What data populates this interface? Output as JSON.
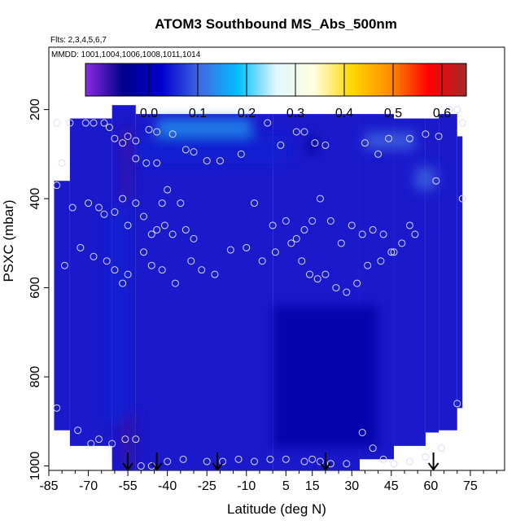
{
  "chart_data": {
    "type": "heatmap",
    "title": "ATOM3 Southbound MS_Abs_500nm",
    "flights_label": "Flts: 2,3,4,5,6,7",
    "dates_label": "MMDD: 1001,1004,1006,1008,1011,1014",
    "xlabel": "Latitude (deg N)",
    "ylabel": "PSXC (mbar)",
    "xlim": [
      -85,
      88
    ],
    "ylim": [
      1010,
      60
    ],
    "x_ticks": [
      -85,
      -70,
      -55,
      -40,
      -25,
      -10,
      5,
      15,
      30,
      45,
      60,
      75
    ],
    "x_tick_labels": [
      "-85",
      "-70",
      "-55",
      "-40",
      "-25",
      "-10",
      "5",
      "15",
      "30",
      "45",
      "60",
      "75"
    ],
    "y_ticks": [
      200,
      400,
      600,
      800,
      1000
    ],
    "y_tick_labels": [
      "200",
      "400",
      "600",
      "800",
      "1000"
    ],
    "colorbar": {
      "min": -0.13,
      "max": 0.65,
      "ticks": [
        0.0,
        0.1,
        0.2,
        0.3,
        0.4,
        0.5,
        0.6
      ],
      "tick_labels": [
        "0.0",
        "0.1",
        "0.2",
        "0.3",
        "0.4",
        "0.5",
        "0.6"
      ],
      "colors": [
        "#8a2be2",
        "#00008b",
        "#0000cd",
        "#4169e1",
        "#00bfff",
        "#e0f6ff",
        "#ffffe0",
        "#ffd700",
        "#ff8c00",
        "#ff0000",
        "#a52a2a"
      ]
    },
    "field": {
      "background": 0.0,
      "background_color": "#1a1acc",
      "coverage": [
        {
          "lat": [
            -83,
            -77
          ],
          "p": [
            360,
            920
          ]
        },
        {
          "lat": [
            -77,
            -61
          ],
          "p": [
            220,
            955
          ]
        },
        {
          "lat": [
            -61,
            -52
          ],
          "p": [
            190,
            1010
          ]
        },
        {
          "lat": [
            -52,
            0
          ],
          "p": [
            210,
            1010
          ]
        },
        {
          "lat": [
            0,
            33
          ],
          "p": [
            210,
            1010
          ]
        },
        {
          "lat": [
            33,
            46
          ],
          "p": [
            210,
            985
          ]
        },
        {
          "lat": [
            46,
            58
          ],
          "p": [
            220,
            955
          ]
        },
        {
          "lat": [
            58,
            63
          ],
          "p": [
            220,
            925
          ]
        },
        {
          "lat": [
            63,
            70
          ],
          "p": [
            210,
            920
          ]
        },
        {
          "lat": [
            70,
            72
          ],
          "p": [
            260,
            870
          ]
        }
      ],
      "features": [
        {
          "lat": [
            -44,
            -8
          ],
          "p": [
            220,
            260
          ],
          "value": 0.14
        },
        {
          "lat": [
            -58,
            -53
          ],
          "p": [
            240,
            400
          ],
          "value": -0.08
        },
        {
          "lat": [
            -58,
            -52
          ],
          "p": [
            880,
            1000
          ],
          "value": -0.08
        },
        {
          "lat": [
            -62,
            -55
          ],
          "p": [
            420,
            900
          ],
          "value": 0.05
        },
        {
          "lat": [
            -52,
            5
          ],
          "p": [
            260,
            320
          ],
          "value": 0.05
        },
        {
          "lat": [
            35,
            54
          ],
          "p": [
            250,
            290
          ],
          "value": 0.1
        },
        {
          "lat": [
            54,
            62
          ],
          "p": [
            330,
            380
          ],
          "value": 0.1
        },
        {
          "lat": [
            13,
            17
          ],
          "p": [
            260,
            300
          ],
          "value": -0.05
        },
        {
          "lat": [
            0,
            40
          ],
          "p": [
            640,
            960
          ],
          "value": -0.02
        }
      ]
    },
    "sample_points": [
      [
        -82,
        230
      ],
      [
        -77,
        230
      ],
      [
        -71,
        230
      ],
      [
        -68,
        230
      ],
      [
        -64,
        230
      ],
      [
        -62,
        240
      ],
      [
        -60,
        265
      ],
      [
        -57,
        275
      ],
      [
        -55,
        260
      ],
      [
        -52,
        270
      ],
      [
        -47,
        245
      ],
      [
        -44,
        250
      ],
      [
        -38,
        255
      ],
      [
        -33,
        290
      ],
      [
        -30,
        295
      ],
      [
        -25,
        315
      ],
      [
        -20,
        315
      ],
      [
        -12,
        300
      ],
      [
        -8,
        200
      ],
      [
        -2,
        230
      ],
      [
        3,
        280
      ],
      [
        9,
        250
      ],
      [
        12,
        250
      ],
      [
        16,
        275
      ],
      [
        20,
        280
      ],
      [
        26,
        200
      ],
      [
        35,
        275
      ],
      [
        40,
        300
      ],
      [
        44,
        265
      ],
      [
        52,
        265
      ],
      [
        58,
        255
      ],
      [
        63,
        260
      ],
      [
        67,
        200
      ],
      [
        70,
        200
      ],
      [
        72,
        230
      ],
      [
        -82,
        370
      ],
      [
        -80,
        320
      ],
      [
        -76,
        420
      ],
      [
        -70,
        410
      ],
      [
        -66,
        420
      ],
      [
        -64,
        435
      ],
      [
        -60,
        430
      ],
      [
        -57,
        400
      ],
      [
        -52,
        310
      ],
      [
        -48,
        320
      ],
      [
        -44,
        320
      ],
      [
        -42,
        410
      ],
      [
        -40,
        380
      ],
      [
        -35,
        410
      ],
      [
        -52,
        410
      ],
      [
        -49,
        440
      ],
      [
        -46,
        480
      ],
      [
        -44,
        470
      ],
      [
        -41,
        460
      ],
      [
        -38,
        480
      ],
      [
        -33,
        470
      ],
      [
        -30,
        490
      ],
      [
        -55,
        460
      ],
      [
        -7,
        410
      ],
      [
        0,
        460
      ],
      [
        5,
        450
      ],
      [
        9,
        490
      ],
      [
        12,
        470
      ],
      [
        15,
        450
      ],
      [
        18,
        400
      ],
      [
        22,
        450
      ],
      [
        26,
        500
      ],
      [
        30,
        460
      ],
      [
        34,
        480
      ],
      [
        38,
        470
      ],
      [
        42,
        480
      ],
      [
        46,
        520
      ],
      [
        52,
        460
      ],
      [
        62,
        360
      ],
      [
        72,
        400
      ],
      [
        -79,
        550
      ],
      [
        -73,
        510
      ],
      [
        -68,
        530
      ],
      [
        -63,
        540
      ],
      [
        -60,
        560
      ],
      [
        -57,
        590
      ],
      [
        -55,
        570
      ],
      [
        -49,
        520
      ],
      [
        -46,
        550
      ],
      [
        -42,
        560
      ],
      [
        -37,
        590
      ],
      [
        -31,
        540
      ],
      [
        -27,
        560
      ],
      [
        -22,
        570
      ],
      [
        -16,
        515
      ],
      [
        -10,
        510
      ],
      [
        -4,
        540
      ],
      [
        1,
        520
      ],
      [
        7,
        500
      ],
      [
        11,
        540
      ],
      [
        14,
        570
      ],
      [
        17,
        580
      ],
      [
        20,
        570
      ],
      [
        24,
        600
      ],
      [
        28,
        610
      ],
      [
        32,
        590
      ],
      [
        36,
        550
      ],
      [
        41,
        540
      ],
      [
        45,
        520
      ],
      [
        49,
        500
      ],
      [
        54,
        480
      ],
      [
        -82,
        870
      ],
      [
        -74,
        920
      ],
      [
        -69,
        950
      ],
      [
        -66,
        940
      ],
      [
        -61,
        950
      ],
      [
        -56,
        940
      ],
      [
        -52,
        940
      ],
      [
        -50,
        1000
      ],
      [
        -46,
        1000
      ],
      [
        -40,
        990
      ],
      [
        -34,
        985
      ],
      [
        -25,
        990
      ],
      [
        -19,
        990
      ],
      [
        -13,
        985
      ],
      [
        -7,
        990
      ],
      [
        -1,
        985
      ],
      [
        5,
        985
      ],
      [
        12,
        990
      ],
      [
        15,
        985
      ],
      [
        18,
        990
      ],
      [
        22,
        995
      ],
      [
        28,
        995
      ],
      [
        34,
        925
      ],
      [
        38,
        960
      ],
      [
        42,
        985
      ],
      [
        46,
        995
      ],
      [
        52,
        990
      ],
      [
        58,
        980
      ],
      [
        64,
        960
      ],
      [
        70,
        860
      ]
    ],
    "flight_markers": [
      -55,
      -44,
      -21,
      20,
      61
    ]
  }
}
